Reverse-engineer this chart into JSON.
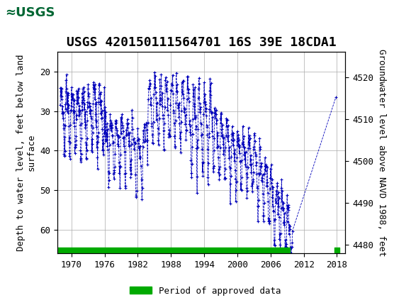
{
  "title": "USGS 420150111564701 16S 39E 18CDA1",
  "header_bg": "#006633",
  "ylabel_left": "Depth to water level, feet below land\nsurface",
  "ylabel_right": "Groundwater level above NAVD 1988, feet",
  "xlim": [
    1967.5,
    2019.5
  ],
  "ylim_left": [
    66,
    15
  ],
  "ylim_right": [
    4478,
    4526
  ],
  "yticks_left": [
    20,
    30,
    40,
    50,
    60
  ],
  "yticks_right": [
    4480,
    4490,
    4500,
    4510,
    4520
  ],
  "xticks": [
    1970,
    1976,
    1982,
    1988,
    1994,
    2000,
    2006,
    2012,
    2018
  ],
  "line_color": "#0000BB",
  "bar_color": "#00AA00",
  "legend_label": "Period of approved data",
  "approved_bar_start": 1967.5,
  "approved_bar_end": 2009.5,
  "approved_dot_x": 2018.0,
  "background": "#ffffff",
  "grid_color": "#aaaaaa",
  "title_fontsize": 13,
  "tick_fontsize": 9,
  "label_fontsize": 9
}
